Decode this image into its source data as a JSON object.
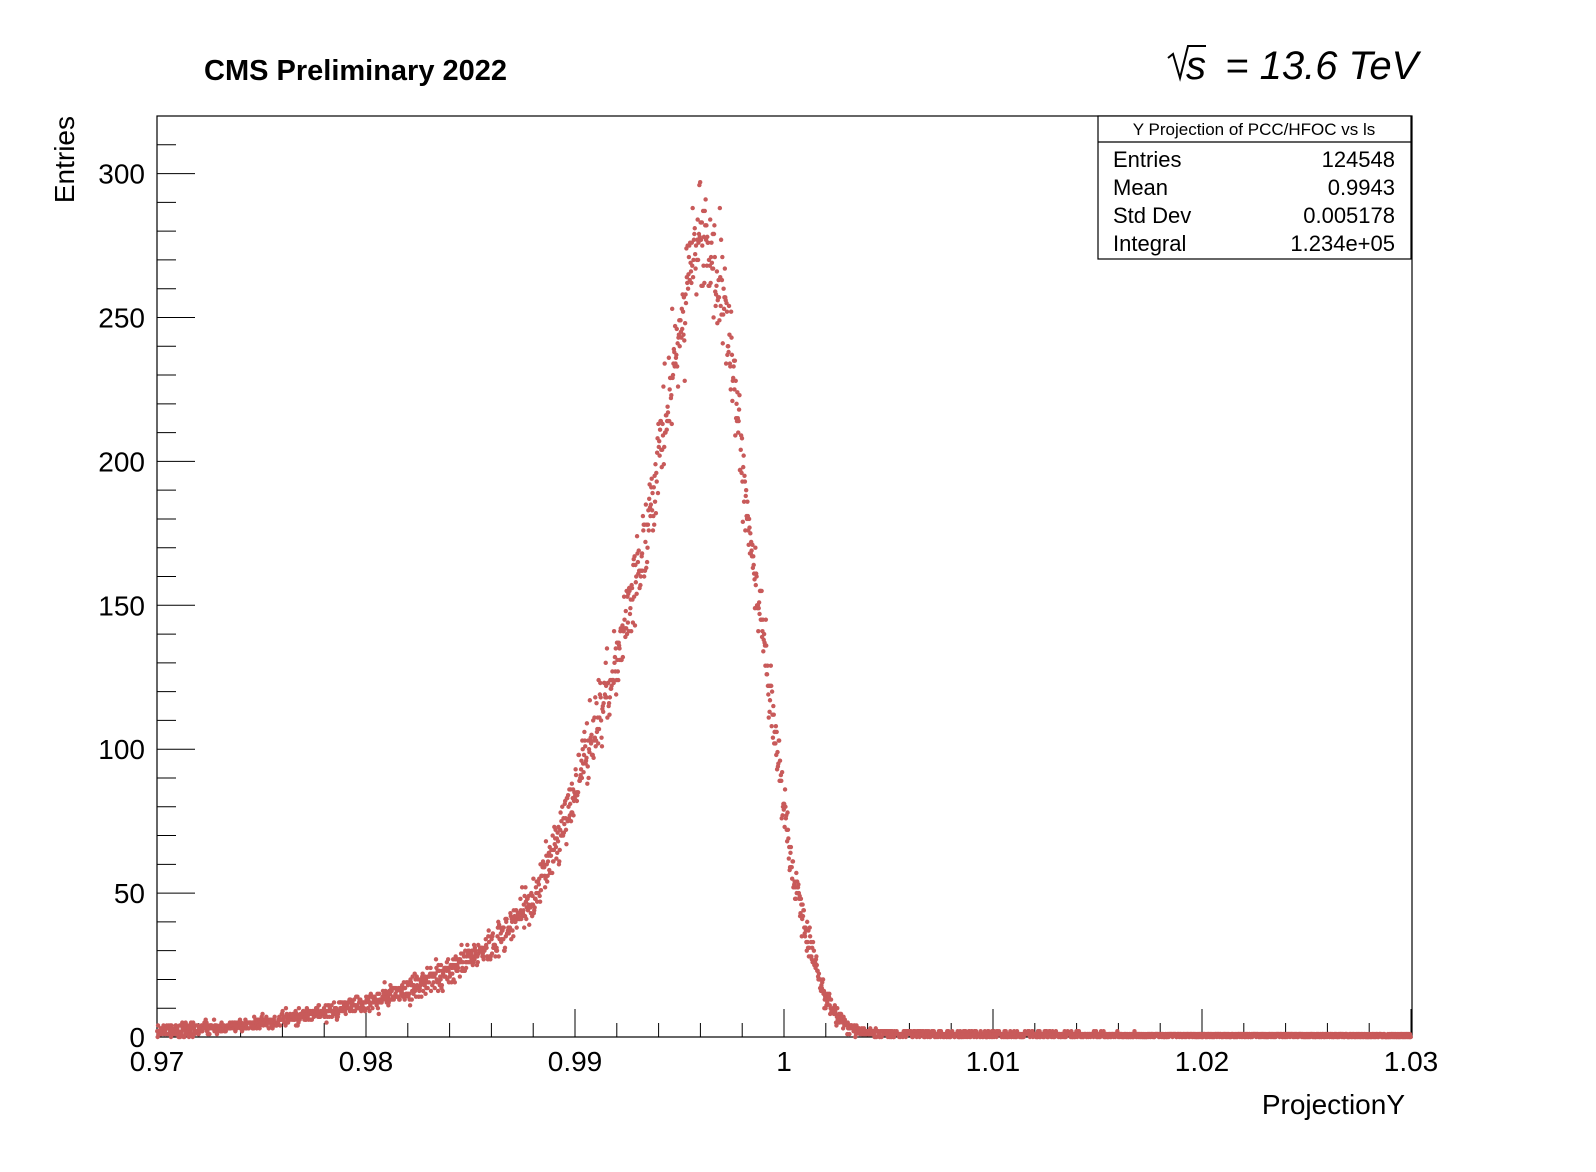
{
  "header": {
    "experiment_label": "CMS Preliminary 2022",
    "energy_label": "s = 13.6 TeV"
  },
  "stats_box": {
    "title": "Y Projection of PCC/HFOC vs ls",
    "rows": [
      {
        "label": "Entries",
        "value": "124548"
      },
      {
        "label": "Mean",
        "value": "0.9943"
      },
      {
        "label": "Std Dev",
        "value": "0.005178"
      },
      {
        "label": "Integral",
        "value": "1.234e+05"
      }
    ]
  },
  "colors": {
    "marker": "#c85a5a",
    "axis": "#000000",
    "background": "#ffffff"
  },
  "chart_data": {
    "type": "scatter",
    "title": "CMS Preliminary 2022",
    "xlabel": "ProjectionY",
    "ylabel": "Entries",
    "xlim": [
      0.97,
      1.03
    ],
    "ylim": [
      0,
      320
    ],
    "x_ticks": [
      0.97,
      0.98,
      0.99,
      1.0,
      1.01,
      1.02,
      1.03
    ],
    "x_tick_labels": [
      "0.97",
      "0.98",
      "0.99",
      "1",
      "1.01",
      "1.02",
      "1.03"
    ],
    "y_ticks": [
      0,
      50,
      100,
      150,
      200,
      250,
      300
    ],
    "y_tick_labels": [
      "0",
      "50",
      "100",
      "150",
      "200",
      "250",
      "300"
    ],
    "bins": 3000,
    "series": [
      {
        "name": "Y Projection of PCC/HFOC vs ls",
        "x": [
          0.97,
          0.972,
          0.974,
          0.976,
          0.978,
          0.98,
          0.982,
          0.984,
          0.986,
          0.987,
          0.988,
          0.989,
          0.99,
          0.991,
          0.992,
          0.993,
          0.994,
          0.995,
          0.9955,
          0.996,
          0.9965,
          0.997,
          0.9975,
          0.998,
          0.9985,
          0.999,
          0.9995,
          1.0,
          1.0005,
          1.001,
          1.0015,
          1.002,
          1.0025,
          1.003,
          1.0035,
          1.004,
          1.006,
          1.01,
          1.02,
          1.03
        ],
        "y": [
          2,
          3,
          4,
          6,
          9,
          12,
          16,
          23,
          32,
          39,
          48,
          65,
          86,
          108,
          132,
          162,
          198,
          245,
          268,
          277,
          272,
          258,
          232,
          200,
          168,
          138,
          108,
          80,
          56,
          38,
          24,
          14,
          8,
          4,
          2,
          1.5,
          1.2,
          1,
          0.8,
          0.6
        ]
      }
    ]
  }
}
